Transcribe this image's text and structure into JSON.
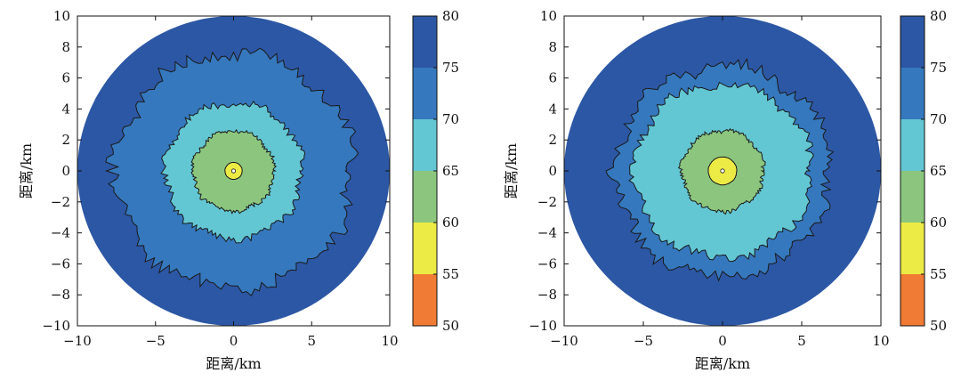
{
  "chart_data": [
    {
      "type": "contour",
      "id": "left",
      "xlabel": "距离/km",
      "ylabel": "距离/km",
      "xlim": [
        -10,
        10
      ],
      "ylim": [
        -10,
        10
      ],
      "xticks": [
        "−10",
        "−5",
        "0",
        "5",
        "10"
      ],
      "yticks": [
        "10",
        "8",
        "6",
        "4",
        "2",
        "0",
        "−2",
        "−4",
        "−6",
        "−8",
        "−10"
      ],
      "domain_radius_km": 10,
      "contour_levels": [
        80,
        75,
        70,
        65,
        60,
        55,
        50
      ],
      "colorbar_ticks": [
        "80",
        "75",
        "70",
        "65",
        "60",
        "55",
        "50"
      ],
      "colorbar_colors": [
        "#2c57a4",
        "#3578bd",
        "#63c7d3",
        "#8cc67e",
        "#eceb46",
        "#f07b34"
      ],
      "bands": [
        {
          "from": 75,
          "to": 80,
          "color": "#2c57a4",
          "radius_km": 10.0
        },
        {
          "from": 70,
          "to": 75,
          "color": "#3578bd",
          "radius_km": 7.6
        },
        {
          "from": 65,
          "to": 70,
          "color": "#63c7d3",
          "radius_km": 4.4
        },
        {
          "from": 60,
          "to": 65,
          "color": "#8cc67e",
          "radius_km": 2.6
        },
        {
          "from": 55,
          "to": 60,
          "color": "#eceb46",
          "radius_km": 0.55
        }
      ],
      "center_km": [
        0,
        0
      ]
    },
    {
      "type": "contour",
      "id": "right",
      "xlabel": "距离/km",
      "ylabel": "距离/km",
      "xlim": [
        -10,
        10
      ],
      "ylim": [
        -10,
        10
      ],
      "xticks": [
        "−10",
        "−5",
        "0",
        "5",
        "10"
      ],
      "yticks": [
        "10",
        "8",
        "6",
        "4",
        "2",
        "0",
        "−2",
        "−4",
        "−6",
        "−8",
        "−10"
      ],
      "domain_radius_km": 10,
      "contour_levels": [
        80,
        75,
        70,
        65,
        60,
        55,
        50
      ],
      "colorbar_ticks": [
        "80",
        "75",
        "70",
        "65",
        "60",
        "55",
        "50"
      ],
      "colorbar_colors": [
        "#2c57a4",
        "#3578bd",
        "#63c7d3",
        "#8cc67e",
        "#eceb46",
        "#f07b34"
      ],
      "bands": [
        {
          "from": 75,
          "to": 80,
          "color": "#2c57a4",
          "radius_km": 10.0
        },
        {
          "from": 70,
          "to": 75,
          "color": "#3578bd",
          "radius_km": 6.8
        },
        {
          "from": 65,
          "to": 70,
          "color": "#63c7d3",
          "radius_km": 5.6
        },
        {
          "from": 60,
          "to": 65,
          "color": "#8cc67e",
          "radius_km": 2.6
        },
        {
          "from": 55,
          "to": 60,
          "color": "#eceb46",
          "radius_km": 0.9
        }
      ],
      "center_km": [
        0,
        0
      ]
    }
  ]
}
